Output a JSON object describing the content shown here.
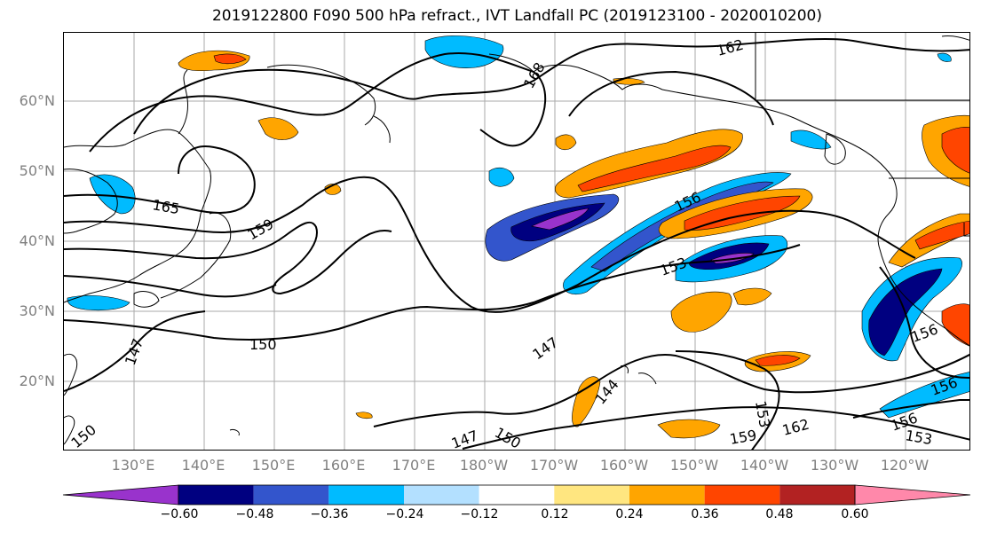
{
  "title": "2019122800 F090 500 hPa refract., IVT Landfall PC (2019123100 - 2020010200)",
  "map": {
    "lat_labels": [
      "60°N",
      "50°N",
      "40°N",
      "30°N",
      "20°N"
    ],
    "lon_labels": [
      "130°E",
      "140°E",
      "150°E",
      "160°E",
      "170°E",
      "180°W",
      "170°W",
      "160°W",
      "150°W",
      "140°W",
      "130°W",
      "120°W"
    ],
    "contour_labels": [
      "162",
      "168",
      "165",
      "159",
      "156",
      "153",
      "150",
      "147",
      "144",
      "150",
      "147",
      "150",
      "153",
      "159",
      "162",
      "156",
      "153",
      "156",
      "156",
      "147"
    ],
    "grid": true
  },
  "colorbar": {
    "tick_labels": [
      "−0.60",
      "−0.48",
      "−0.36",
      "−0.24",
      "−0.12",
      "0.12",
      "0.24",
      "0.36",
      "0.48",
      "0.60"
    ],
    "colors": [
      "#9933cc",
      "#000080",
      "#3355cc",
      "#00bbff",
      "#b3e0ff",
      "#ffffff",
      "#ffe680",
      "#ffa500",
      "#ff4500",
      "#b22222",
      "#ff88aa"
    ]
  }
}
